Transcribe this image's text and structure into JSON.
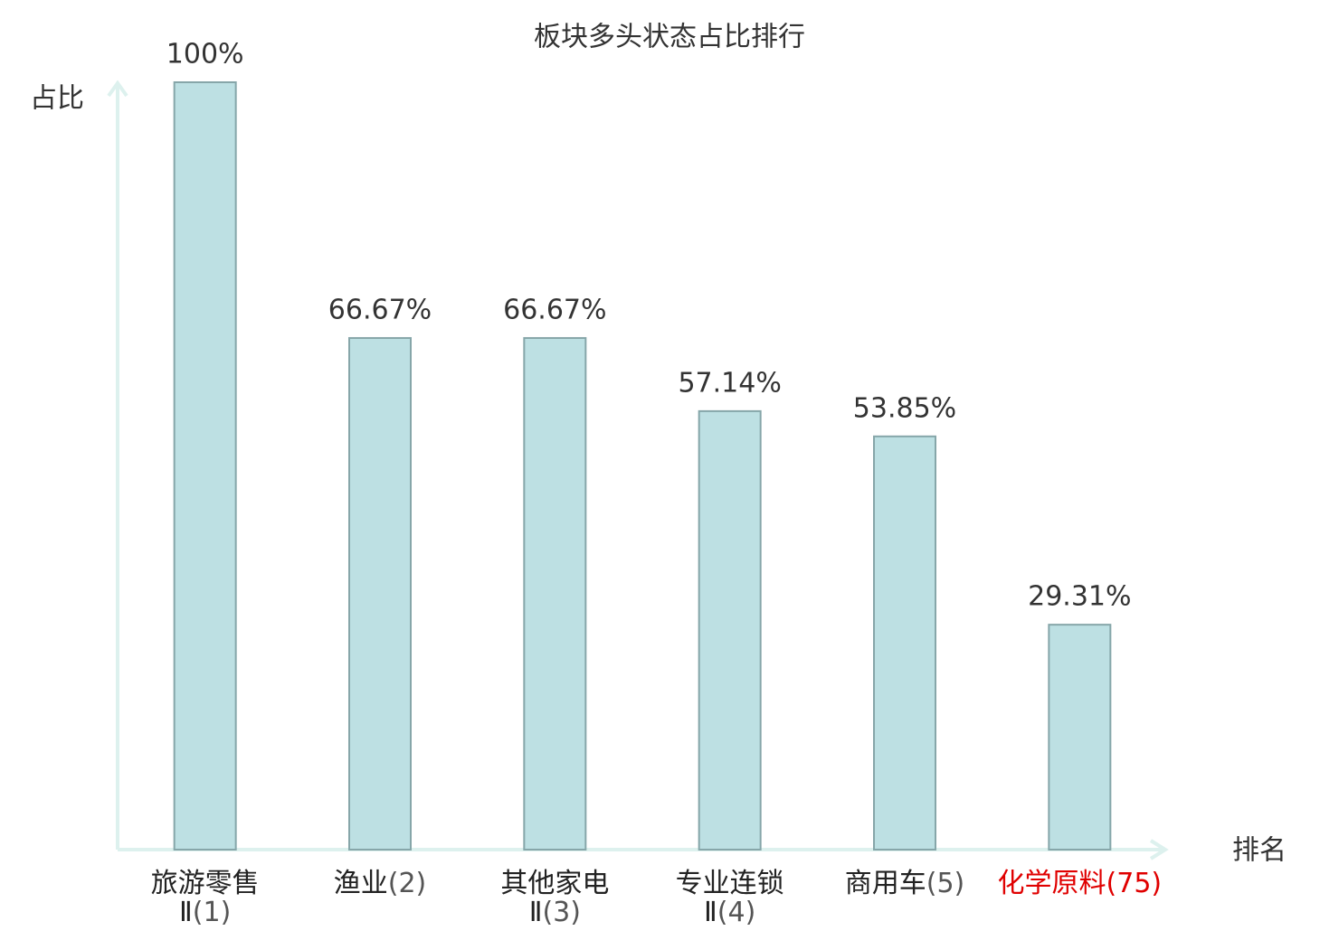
{
  "chart_data": {
    "type": "bar",
    "title": "板块多头状态占比排行",
    "y_label": "占比",
    "x_label": "排名",
    "categories": [
      "旅游零售Ⅱ",
      "渔业",
      "其他家电Ⅱ",
      "专业连锁Ⅱ",
      "商用车",
      "化学原料"
    ],
    "ranks": [
      "(1)",
      "(2)",
      "(3)",
      "(4)",
      "(5)",
      "(75)"
    ],
    "values": [
      100,
      66.67,
      66.67,
      57.14,
      53.85,
      29.31
    ],
    "value_labels": [
      "100%",
      "66.67%",
      "66.67%",
      "57.14%",
      "53.85%",
      "29.31%"
    ],
    "color": "#bde0e3",
    "edge_color": "#86a6a9",
    "highlight_index": 5,
    "highlight_color": "#e00000",
    "ylim": [
      0,
      100
    ]
  }
}
